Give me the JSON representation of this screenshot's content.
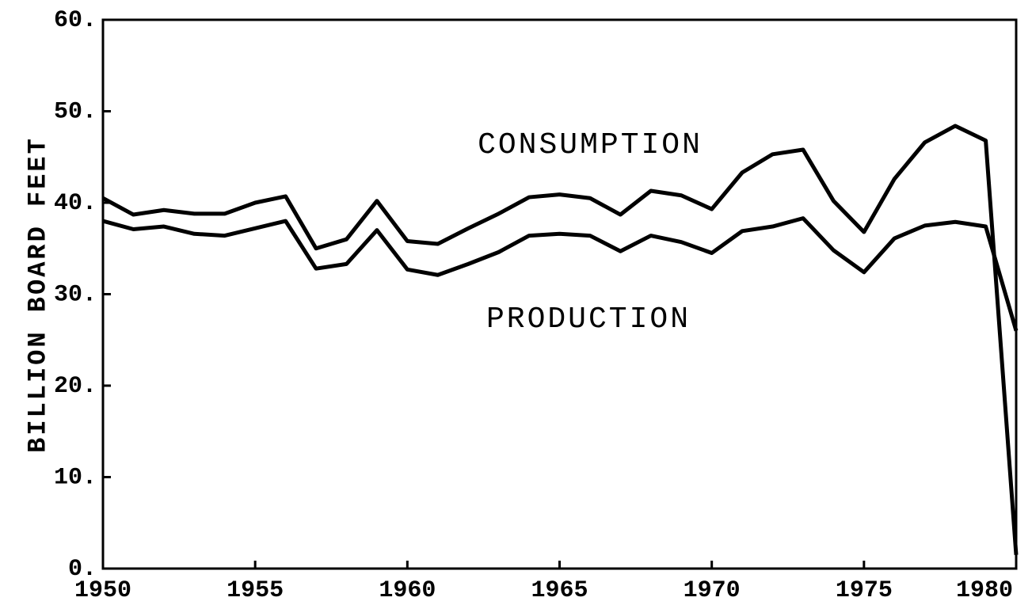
{
  "chart_data": {
    "type": "line",
    "y_label": "BILLION BOARD FEET",
    "x": [
      1950,
      1951,
      1952,
      1953,
      1954,
      1955,
      1956,
      1957,
      1958,
      1959,
      1960,
      1961,
      1962,
      1963,
      1964,
      1965,
      1966,
      1967,
      1968,
      1969,
      1970,
      1971,
      1972,
      1973,
      1974,
      1975,
      1976,
      1977,
      1978,
      1979,
      1980
    ],
    "series": [
      {
        "name": "CONSUMPTION",
        "color": "#000000",
        "values": [
          40.5,
          38.7,
          39.2,
          38.8,
          38.8,
          40.0,
          40.7,
          35.0,
          36.0,
          40.2,
          35.8,
          35.5,
          37.2,
          38.8,
          40.6,
          40.9,
          40.5,
          38.7,
          41.3,
          40.8,
          39.3,
          43.3,
          45.3,
          45.8,
          40.2,
          36.8,
          42.6,
          46.6,
          48.4,
          46.8,
          1.5
        ]
      },
      {
        "name": "PRODUCTION",
        "color": "#000000",
        "values": [
          38.0,
          37.1,
          37.4,
          36.6,
          36.4,
          37.2,
          38.0,
          32.8,
          33.3,
          37.0,
          32.7,
          32.1,
          33.3,
          34.6,
          36.4,
          36.6,
          36.4,
          34.7,
          36.4,
          35.7,
          34.5,
          36.9,
          37.4,
          38.3,
          34.8,
          32.4,
          36.1,
          37.5,
          37.9,
          37.4,
          26.0
        ]
      }
    ],
    "xlim": [
      1950,
      1980
    ],
    "xticks": [
      1950,
      1955,
      1960,
      1965,
      1970,
      1975,
      1980
    ],
    "ylim": [
      0,
      60
    ],
    "yticks": [
      {
        "value": 0,
        "label": "0."
      },
      {
        "value": 10,
        "label": "10."
      },
      {
        "value": 20,
        "label": "20."
      },
      {
        "value": 30,
        "label": "30."
      },
      {
        "value": 40,
        "label": "40."
      },
      {
        "value": 50,
        "label": "50."
      },
      {
        "value": 60,
        "label": "60."
      }
    ],
    "grid": false
  }
}
